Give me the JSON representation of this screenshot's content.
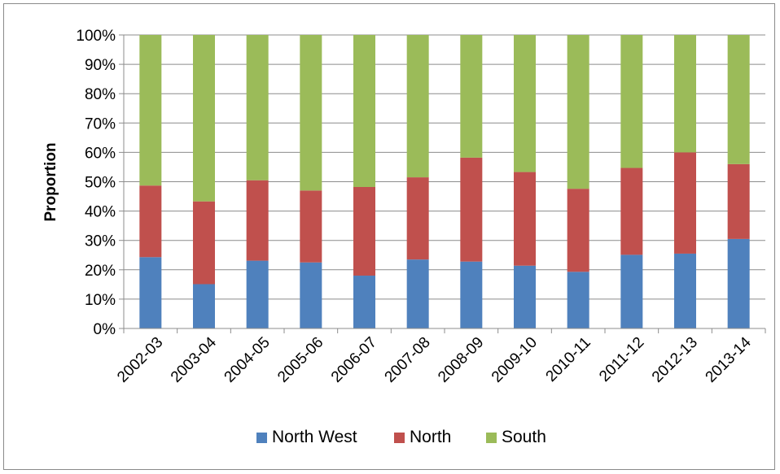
{
  "chart_data": {
    "type": "bar",
    "stacked": true,
    "categories": [
      "2002-03",
      "2003-04",
      "2004-05",
      "2005-06",
      "2006-07",
      "2007-08",
      "2008-09",
      "2009-10",
      "2010-11",
      "2011-12",
      "2012-13",
      "2013-14"
    ],
    "series": [
      {
        "name": "North West",
        "color": "#4f81bd",
        "values": [
          24.3,
          15.1,
          23.1,
          22.5,
          18.0,
          23.5,
          22.8,
          21.4,
          19.3,
          25.1,
          25.5,
          30.5
        ]
      },
      {
        "name": "North",
        "color": "#c0504d",
        "values": [
          24.4,
          28.2,
          27.4,
          24.5,
          30.2,
          28.0,
          35.4,
          31.9,
          28.3,
          29.6,
          34.5,
          25.5
        ]
      },
      {
        "name": "South",
        "color": "#9bbb59",
        "values": [
          51.3,
          56.7,
          49.5,
          53.0,
          51.8,
          48.5,
          41.8,
          46.7,
          52.4,
          45.3,
          40.0,
          44.0
        ]
      }
    ],
    "title": "",
    "xlabel": "",
    "ylabel": "Proportion",
    "ylim": [
      0,
      100
    ],
    "yticks": [
      "0%",
      "10%",
      "20%",
      "30%",
      "40%",
      "50%",
      "60%",
      "70%",
      "80%",
      "90%",
      "100%"
    ],
    "grid": true,
    "legend_position": "bottom"
  }
}
